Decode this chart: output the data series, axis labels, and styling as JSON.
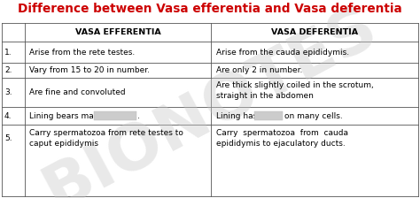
{
  "title": "Difference between Vasa efferentia and Vasa deferentia",
  "title_color": "#cc0000",
  "background_color": "#ffffff",
  "header_left": "VASA EFFERENTIA",
  "header_right": "VASA DEFERENTIA",
  "header_color": "#000000",
  "rows": [
    {
      "num": "1.",
      "left": "Arise from the rete testes.",
      "right": "Arise from the cauda epididymis."
    },
    {
      "num": "2.",
      "left": "Vary from 15 to 20 in number.",
      "right": "Are only 2 in number."
    },
    {
      "num": "3.",
      "left": "Are fine and convoluted",
      "right": "Are thick slightly coiled in the scrotum,\nstraight in the abdomen"
    },
    {
      "num": "4.",
      "left_part1": "Lining bears many ",
      "left_blurred": true,
      "left_part2": ".",
      "right_part1": "Lining has ",
      "right_blurred": true,
      "right_part2": " on many cells."
    },
    {
      "num": "5.",
      "left": "Carry spermatozoa from rete testes to\ncaput epididymis",
      "right": "Carry  spermatozoa  from  cauda\nepididymis to ejaculatory ducts."
    }
  ],
  "watermark_text": "BIONOTES",
  "watermark_color": "#c8c8c8",
  "watermark_alpha": 0.4
}
